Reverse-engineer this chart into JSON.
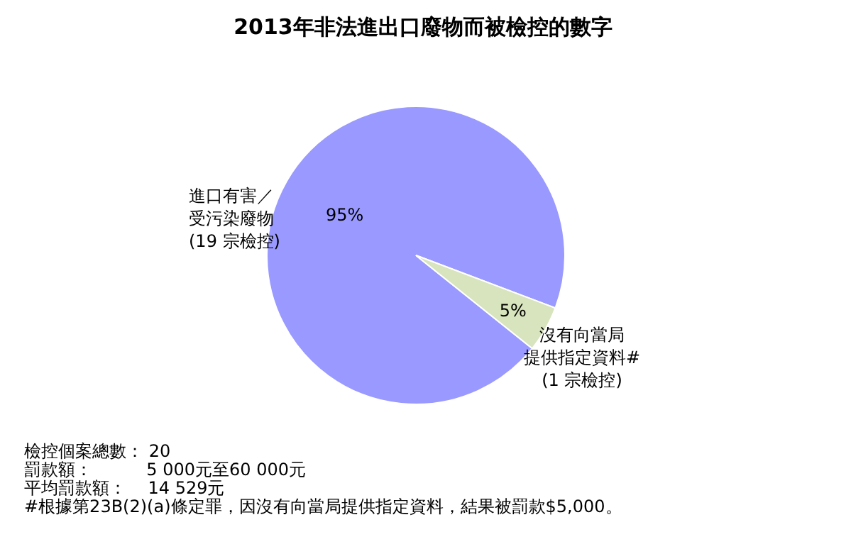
{
  "chart_data": {
    "type": "pie",
    "title": "2013年非法進出口廢物而被檢控的數字",
    "categories": [
      "進口有害／受污染廢物(19 宗檢控)",
      "沒有向當局提供指定資料#(1 宗檢控)"
    ],
    "values": [
      95,
      5
    ],
    "colors": [
      "#9999ff",
      "#d7e4bd"
    ],
    "value_labels": [
      "95%",
      "5%"
    ],
    "legend": false,
    "annotations": [
      "檢控個案總數： 20",
      "罰款額：          5 000元至60 000元",
      "平均罰款額：    14 529元",
      "#根據第23B(2)(a)條定罪，因沒有向當局提供指定資料，結果被罰款$5,000。"
    ]
  }
}
